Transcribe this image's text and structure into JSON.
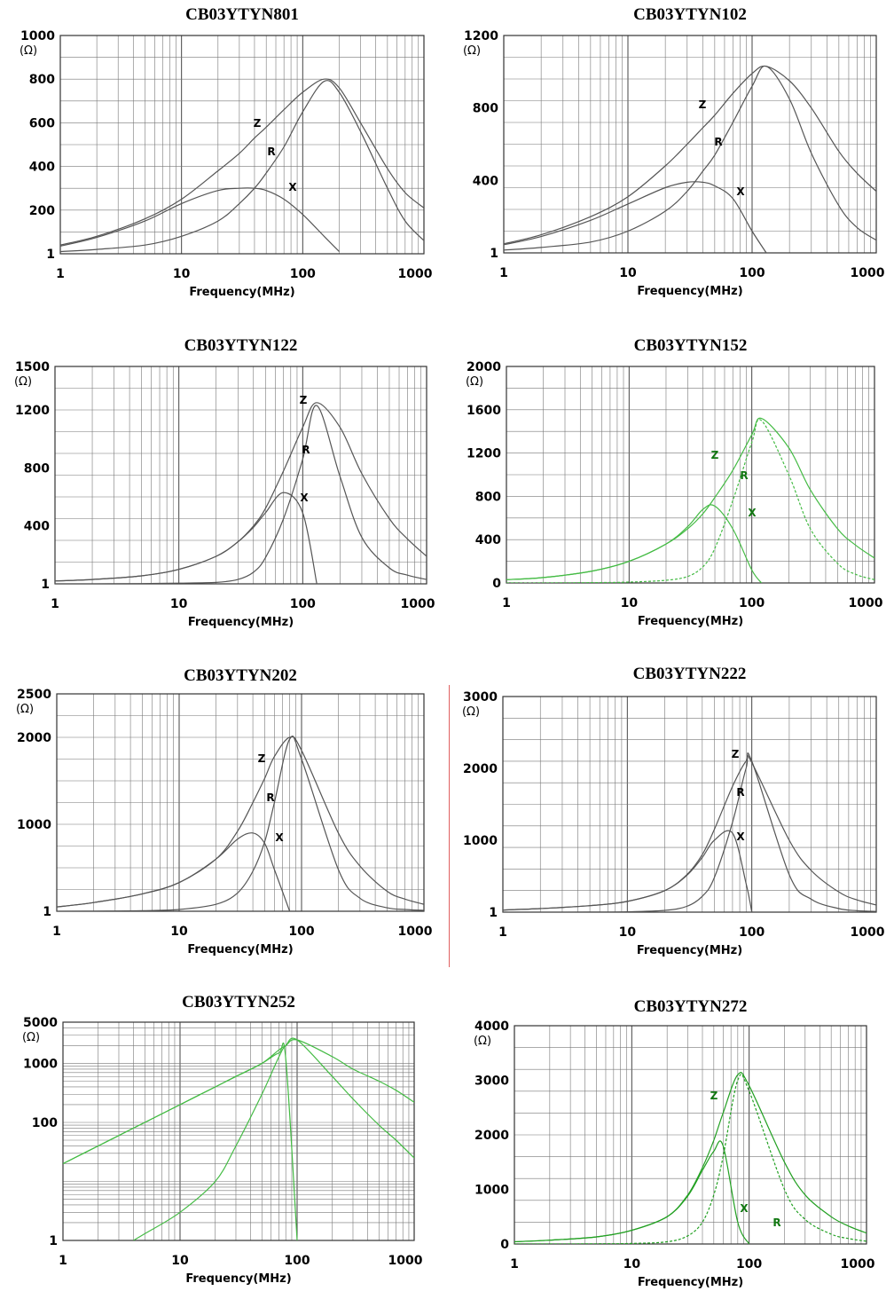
{
  "colors": {
    "gray_curve": "#555555",
    "green_curve": "#44bb44",
    "dark_green": "#22a022",
    "label_green": "#117711",
    "divider": "#e06060"
  },
  "common": {
    "xlabel": "Frequency(MHz)",
    "unit": "(Ω)",
    "x_ticks": [
      "1",
      "10",
      "100",
      "1000"
    ]
  },
  "chart_data": [
    {
      "type": "line",
      "title": "CB03YTYN801",
      "xlabel": "Frequency(MHz)",
      "ylabel": "(Ω)",
      "x_scale": "log",
      "xlim": [
        1,
        1000
      ],
      "ylim": [
        0,
        1000
      ],
      "y_scale": "linear",
      "y_ticks": [
        "1",
        "200",
        "400",
        "600",
        "800",
        "1000"
      ],
      "grid": true,
      "color": "gray",
      "x": [
        1,
        2,
        5,
        10,
        20,
        30,
        40,
        50,
        70,
        100,
        150,
        200,
        300,
        500,
        700,
        1000
      ],
      "series": [
        {
          "name": "Z",
          "values": [
            40,
            80,
            160,
            250,
            380,
            460,
            530,
            580,
            660,
            740,
            800,
            760,
            600,
            390,
            280,
            210
          ]
        },
        {
          "name": "R",
          "values": [
            10,
            20,
            40,
            80,
            150,
            230,
            300,
            370,
            490,
            650,
            790,
            740,
            560,
            300,
            150,
            60
          ]
        },
        {
          "name": "X",
          "values": [
            35,
            75,
            150,
            230,
            290,
            300,
            300,
            290,
            250,
            180,
            80,
            10,
            null,
            null,
            null,
            null
          ]
        }
      ],
      "annotations": [
        "Z",
        "R",
        "X"
      ]
    },
    {
      "type": "line",
      "title": "CB03YTYN102",
      "xlabel": "Frequency(MHz)",
      "ylabel": "(Ω)",
      "x_scale": "log",
      "xlim": [
        1,
        1000
      ],
      "ylim": [
        0,
        1200
      ],
      "y_scale": "linear",
      "y_ticks": [
        "1",
        "400",
        "800",
        "1200"
      ],
      "grid": true,
      "color": "gray",
      "x": [
        1,
        2,
        5,
        10,
        20,
        30,
        40,
        50,
        70,
        100,
        130,
        200,
        300,
        500,
        700,
        1000
      ],
      "series": [
        {
          "name": "Z",
          "values": [
            50,
            100,
            200,
            310,
            480,
            600,
            690,
            760,
            880,
            990,
            1030,
            950,
            800,
            560,
            440,
            340
          ]
        },
        {
          "name": "R",
          "values": [
            15,
            30,
            60,
            120,
            230,
            340,
            450,
            540,
            720,
            920,
            1030,
            850,
            550,
            260,
            140,
            70
          ]
        },
        {
          "name": "X",
          "values": [
            45,
            90,
            180,
            270,
            360,
            390,
            390,
            370,
            300,
            120,
            0,
            null,
            null,
            null,
            null,
            null
          ]
        }
      ],
      "annotations": [
        "Z",
        "R",
        "X"
      ]
    },
    {
      "type": "line",
      "title": "CB03YTYN122",
      "xlabel": "Frequency(MHz)",
      "ylabel": "(Ω)",
      "x_scale": "log",
      "xlim": [
        1,
        1000
      ],
      "ylim": [
        0,
        1500
      ],
      "y_scale": "linear",
      "y_ticks": [
        "1",
        "400",
        "800",
        "1200",
        "1500"
      ],
      "grid": true,
      "color": "gray",
      "x": [
        1,
        2,
        5,
        10,
        20,
        30,
        40,
        50,
        70,
        100,
        130,
        200,
        300,
        500,
        700,
        1000
      ],
      "series": [
        {
          "name": "Z",
          "values": [
            20,
            30,
            55,
            100,
            190,
            290,
            400,
            520,
            780,
            1080,
            1250,
            1080,
            760,
            450,
            310,
            190
          ]
        },
        {
          "name": "R",
          "values": [
            0,
            0,
            2,
            5,
            10,
            30,
            80,
            180,
            450,
            860,
            1230,
            740,
            320,
            110,
            60,
            30
          ]
        },
        {
          "name": "X",
          "values": [
            20,
            30,
            55,
            100,
            190,
            290,
            390,
            490,
            630,
            490,
            0,
            null,
            null,
            null,
            null,
            null
          ]
        }
      ],
      "annotations": [
        "Z",
        "R",
        "X"
      ]
    },
    {
      "type": "line",
      "title": "CB03YTYN152",
      "xlabel": "Frequency(MHz)",
      "ylabel": "(Ω)",
      "x_scale": "log",
      "xlim": [
        1,
        1000
      ],
      "ylim": [
        0,
        2000
      ],
      "y_scale": "linear",
      "y_ticks": [
        "0",
        "400",
        "800",
        "1200",
        "1600",
        "2000"
      ],
      "grid": true,
      "color": "green",
      "x": [
        1,
        2,
        5,
        10,
        20,
        30,
        40,
        50,
        70,
        100,
        120,
        200,
        300,
        500,
        700,
        1000
      ],
      "series": [
        {
          "name": "Z",
          "values": [
            30,
            50,
            110,
            200,
            360,
            500,
            640,
            790,
            1040,
            1370,
            1520,
            1250,
            860,
            500,
            350,
            230
          ]
        },
        {
          "name": "R",
          "values": [
            0,
            0,
            3,
            8,
            25,
            60,
            150,
            320,
            760,
            1300,
            1500,
            1000,
            500,
            180,
            80,
            30
          ]
        },
        {
          "name": "X",
          "values": [
            30,
            50,
            110,
            200,
            360,
            520,
            680,
            710,
            500,
            120,
            0,
            null,
            null,
            null,
            null,
            null
          ]
        }
      ],
      "annotations": [
        "Z",
        "R",
        "X"
      ]
    },
    {
      "type": "line",
      "title": "CB03YTYN202",
      "xlabel": "Frequency(MHz)",
      "ylabel": "(Ω)",
      "x_scale": "log",
      "xlim": [
        1,
        1000
      ],
      "ylim": [
        0,
        2500
      ],
      "y_scale": "linear",
      "y_ticks": [
        "1",
        "1000",
        "2000",
        "2500"
      ],
      "grid": true,
      "color": "gray",
      "x": [
        1,
        2,
        5,
        10,
        20,
        30,
        40,
        50,
        60,
        80,
        100,
        200,
        300,
        500,
        700,
        1000
      ],
      "series": [
        {
          "name": "Z",
          "values": [
            50,
            100,
            200,
            330,
            600,
            920,
            1250,
            1530,
            1780,
            2000,
            1850,
            900,
            520,
            230,
            140,
            80
          ]
        },
        {
          "name": "R",
          "values": [
            0,
            2,
            6,
            20,
            80,
            210,
            460,
            800,
            1250,
            1980,
            1750,
            480,
            150,
            40,
            20,
            10
          ]
        },
        {
          "name": "X",
          "values": [
            50,
            100,
            200,
            330,
            600,
            830,
            900,
            780,
            480,
            0,
            null,
            null,
            null,
            null,
            null,
            null
          ]
        }
      ],
      "annotations": [
        "Z",
        "R",
        "X"
      ]
    },
    {
      "type": "line",
      "title": "CB03YTYN222",
      "xlabel": "Frequency(MHz)",
      "ylabel": "(Ω)",
      "x_scale": "log",
      "xlim": [
        1,
        1000
      ],
      "ylim": [
        0,
        3000
      ],
      "y_scale": "linear",
      "y_ticks": [
        "1",
        "1000",
        "2000",
        "3000"
      ],
      "grid": true,
      "color": "gray",
      "x": [
        1,
        2,
        5,
        10,
        20,
        30,
        40,
        50,
        70,
        90,
        100,
        200,
        300,
        500,
        700,
        1000
      ],
      "series": [
        {
          "name": "Z",
          "values": [
            30,
            50,
            90,
            150,
            300,
            520,
            800,
            1150,
            1750,
            2100,
            2080,
            1000,
            580,
            280,
            170,
            100
          ]
        },
        {
          "name": "R",
          "values": [
            0,
            0,
            2,
            5,
            25,
            80,
            220,
            480,
            1250,
            2000,
            2100,
            520,
            180,
            50,
            20,
            10
          ]
        },
        {
          "name": "X",
          "values": [
            30,
            50,
            90,
            150,
            300,
            510,
            760,
            1000,
            1100,
            400,
            0,
            null,
            null,
            null,
            null,
            null
          ]
        }
      ],
      "annotations": [
        "Z",
        "R",
        "X"
      ]
    },
    {
      "type": "line",
      "title": "CB03YTYN252",
      "xlabel": "Frequency(MHz)",
      "ylabel": "(Ω)",
      "x_scale": "log",
      "xlim": [
        1,
        1000
      ],
      "ylim": [
        1,
        5000
      ],
      "y_scale": "log",
      "y_ticks": [
        "1",
        "100",
        "1000",
        "5000"
      ],
      "grid": true,
      "color": "green",
      "x": [
        1,
        2,
        4,
        5,
        10,
        20,
        30,
        50,
        70,
        80,
        100,
        200,
        300,
        500,
        700,
        1000
      ],
      "series": [
        {
          "name": "",
          "values": [
            20,
            40,
            80,
            100,
            200,
            400,
            600,
            1000,
            1700,
            2000,
            2500,
            1300,
            800,
            500,
            350,
            220
          ]
        },
        {
          "name": "",
          "values": [
            null,
            null,
            1,
            1.3,
            3,
            10,
            40,
            300,
            1300,
            2000,
            2500,
            600,
            250,
            90,
            50,
            25
          ]
        },
        {
          "name": "",
          "values": [
            20,
            40,
            80,
            100,
            200,
            400,
            600,
            1000,
            1500,
            1200,
            1,
            null,
            null,
            null,
            null,
            null
          ]
        }
      ],
      "annotations": []
    },
    {
      "type": "line",
      "title": "CB03YTYN272",
      "xlabel": "Frequency(MHz)",
      "ylabel": "(Ω)",
      "x_scale": "log",
      "xlim": [
        1,
        1000
      ],
      "ylim": [
        0,
        4000
      ],
      "y_scale": "linear",
      "y_ticks": [
        "0",
        "1000",
        "2000",
        "3000",
        "4000"
      ],
      "grid": true,
      "color": "green",
      "x": [
        1,
        2,
        5,
        10,
        20,
        30,
        40,
        50,
        60,
        80,
        100,
        200,
        300,
        500,
        700,
        1000
      ],
      "series": [
        {
          "name": "Z",
          "values": [
            40,
            70,
            130,
            250,
            500,
            900,
            1400,
            1900,
            2400,
            3100,
            2900,
            1500,
            900,
            500,
            330,
            200
          ]
        },
        {
          "name": "R",
          "values": [
            0,
            0,
            3,
            10,
            40,
            150,
            400,
            900,
            1600,
            3000,
            2800,
            1000,
            450,
            180,
            100,
            50
          ]
        },
        {
          "name": "X",
          "values": [
            40,
            70,
            130,
            250,
            500,
            880,
            1350,
            1700,
            1800,
            400,
            0,
            null,
            null,
            null,
            null,
            null
          ]
        }
      ],
      "annotations": [
        "Z",
        "X",
        "R"
      ]
    }
  ]
}
